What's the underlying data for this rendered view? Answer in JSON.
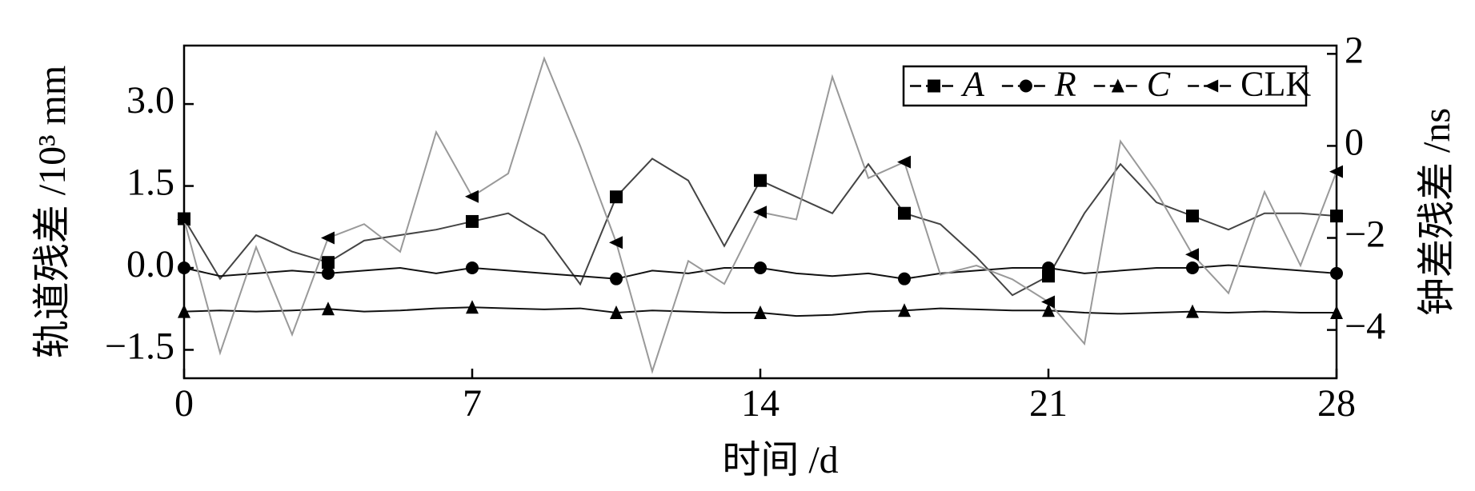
{
  "chart_data": {
    "type": "line",
    "xlabel": "时间 /d",
    "ylabel": "轨道残差 /10³ mm",
    "y2label": "钟差残差 /ns",
    "x": [
      0,
      0.875,
      1.75,
      2.625,
      3.5,
      4.375,
      5.25,
      6.125,
      7,
      7.875,
      8.75,
      9.625,
      10.5,
      11.375,
      12.25,
      13.125,
      14,
      14.875,
      15.75,
      16.625,
      17.5,
      18.375,
      19.25,
      20.125,
      21,
      21.875,
      22.75,
      23.625,
      24.5,
      25.375,
      26.25,
      27.125,
      28
    ],
    "series": [
      {
        "name": "A",
        "color": "#444444",
        "marker": "square",
        "values": [
          0.9,
          -0.2,
          0.6,
          0.3,
          0.1,
          0.5,
          0.6,
          0.7,
          0.85,
          1.0,
          0.6,
          -0.3,
          1.3,
          2.0,
          1.6,
          0.4,
          1.6,
          1.3,
          1.0,
          1.9,
          1.0,
          0.8,
          0.2,
          -0.5,
          -0.15,
          1.0,
          1.9,
          1.2,
          0.95,
          0.7,
          1.0,
          1.0,
          0.95
        ]
      },
      {
        "name": "R",
        "color": "#111111",
        "marker": "circle",
        "values": [
          0.0,
          -0.15,
          -0.1,
          -0.05,
          -0.1,
          -0.05,
          0.0,
          -0.1,
          0.0,
          -0.05,
          -0.1,
          -0.15,
          -0.2,
          -0.05,
          -0.1,
          0.0,
          0.0,
          -0.1,
          -0.15,
          -0.1,
          -0.2,
          -0.1,
          -0.05,
          0.0,
          0.0,
          -0.1,
          -0.05,
          0.0,
          0.0,
          0.05,
          0.0,
          -0.05,
          -0.1
        ]
      },
      {
        "name": "C",
        "color": "#111111",
        "marker": "triangle-up",
        "values": [
          -0.8,
          -0.78,
          -0.8,
          -0.78,
          -0.75,
          -0.8,
          -0.78,
          -0.74,
          -0.72,
          -0.74,
          -0.76,
          -0.74,
          -0.82,
          -0.78,
          -0.8,
          -0.82,
          -0.82,
          -0.88,
          -0.86,
          -0.8,
          -0.78,
          -0.74,
          -0.76,
          -0.78,
          -0.78,
          -0.82,
          -0.84,
          -0.82,
          -0.8,
          -0.82,
          -0.8,
          -0.82,
          -0.82
        ]
      },
      {
        "name": "CLK",
        "color": "#999999",
        "marker": "triangle-left",
        "axis": "y2",
        "values": [
          -1.6,
          -4.5,
          -2.2,
          -4.1,
          -2.0,
          -1.7,
          -2.3,
          0.3,
          -1.1,
          -0.6,
          1.9,
          0.0,
          -2.1,
          -4.9,
          -2.5,
          -3.0,
          -1.44,
          -1.6,
          1.5,
          -0.7,
          -0.35,
          -2.8,
          -2.6,
          -2.9,
          -3.39,
          -4.3,
          0.1,
          -1.0,
          -2.36,
          -3.2,
          -1.0,
          -2.6,
          -0.56
        ]
      }
    ],
    "markevery": 4,
    "xlim": [
      0,
      28
    ],
    "xticks": [
      0,
      7,
      14,
      21,
      28
    ],
    "ylim": [
      -2.02,
      4.07
    ],
    "yticks": [
      {
        "value": -1.5,
        "label": "−1.5"
      },
      {
        "value": 0,
        "label": "0.0"
      },
      {
        "value": 1.5,
        "label": "1.5"
      },
      {
        "value": 3,
        "label": "3.0"
      }
    ],
    "y2lim": [
      -5.05,
      2.18
    ],
    "y2ticks": [
      {
        "value": -4,
        "label": "−4"
      },
      {
        "value": -2,
        "label": "−2"
      },
      0,
      2
    ],
    "legend": "upper right",
    "grid": false
  }
}
